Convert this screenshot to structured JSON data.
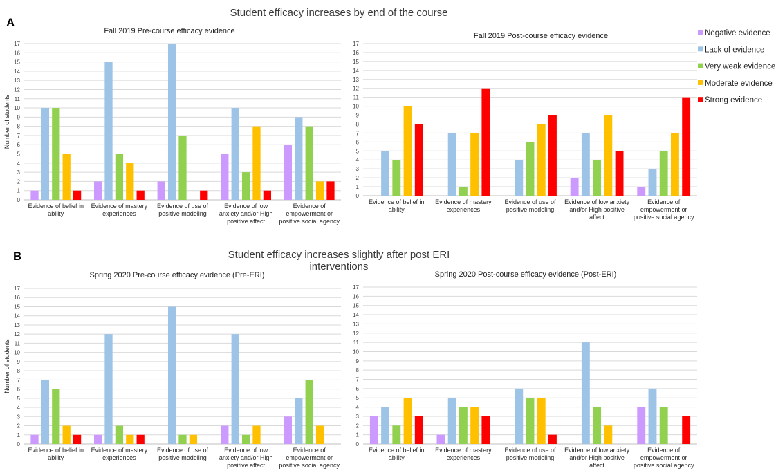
{
  "figure": {
    "section_titles": [
      "Student efficacy increases by end of the course",
      "Student efficacy increases slightly after post ERI interventions"
    ],
    "panel_labels": [
      "A",
      "B"
    ]
  },
  "legend": {
    "placement": "right",
    "items": [
      {
        "name": "Negative evidence",
        "color": "#cc99ff"
      },
      {
        "name": "Lack of evidence",
        "color": "#9dc3e6"
      },
      {
        "name": "Very weak evidence",
        "color": "#92d050"
      },
      {
        "name": "Moderate evidence",
        "color": "#ffc000"
      },
      {
        "name": "Strong evidence",
        "color": "#ff0000"
      }
    ]
  },
  "chart_data": [
    {
      "type": "bar",
      "title": "Fall 2019 Pre-course efficacy evidence",
      "ylabel": "Number of students",
      "ylim": [
        0,
        17
      ],
      "yticks": [
        0,
        1,
        2,
        3,
        4,
        5,
        6,
        7,
        8,
        9,
        10,
        11,
        12,
        13,
        14,
        15,
        16,
        17
      ],
      "grid": true,
      "categories": [
        [
          "Evidence of belief in",
          "ability"
        ],
        [
          "Evidence of mastery",
          "experiences"
        ],
        [
          "Evidence of use of",
          "positive modeling"
        ],
        [
          "Evidence of low",
          "anxiety and/or High",
          "positive affect"
        ],
        [
          "Evidence of",
          "empowerment or",
          "positive social agency"
        ]
      ],
      "series": [
        {
          "name": "Negative evidence",
          "values": [
            1,
            2,
            2,
            5,
            6
          ]
        },
        {
          "name": "Lack of evidence",
          "values": [
            10,
            15,
            17,
            10,
            9
          ]
        },
        {
          "name": "Very weak evidence",
          "values": [
            10,
            5,
            7,
            3,
            8
          ]
        },
        {
          "name": "Moderate evidence",
          "values": [
            5,
            4,
            0,
            8,
            2
          ]
        },
        {
          "name": "Strong evidence",
          "values": [
            1,
            1,
            1,
            1,
            2
          ]
        }
      ]
    },
    {
      "type": "bar",
      "title": "Fall 2019 Post-course efficacy evidence",
      "ylabel": "",
      "ylim": [
        0,
        17
      ],
      "yticks": [
        0,
        1,
        2,
        3,
        4,
        5,
        6,
        7,
        8,
        9,
        10,
        11,
        12,
        13,
        14,
        15,
        16,
        17
      ],
      "grid": true,
      "categories": [
        [
          "Evidence of belief in",
          "ability"
        ],
        [
          "Evidence of mastery",
          "experiences"
        ],
        [
          "Evidence of use of",
          "positive modeling"
        ],
        [
          "Evidence of low anxiety",
          "and/or High positive",
          "affect"
        ],
        [
          "Evidence of",
          "empowerment or",
          "positive social agency"
        ]
      ],
      "series": [
        {
          "name": "Negative evidence",
          "values": [
            0,
            0,
            0,
            2,
            1
          ]
        },
        {
          "name": "Lack of evidence",
          "values": [
            5,
            7,
            4,
            7,
            3
          ]
        },
        {
          "name": "Very weak evidence",
          "values": [
            4,
            1,
            6,
            4,
            5
          ]
        },
        {
          "name": "Moderate evidence",
          "values": [
            10,
            7,
            8,
            9,
            7
          ]
        },
        {
          "name": "Strong evidence",
          "values": [
            8,
            12,
            9,
            5,
            11
          ]
        }
      ]
    },
    {
      "type": "bar",
      "title": "Spring 2020 Pre-course efficacy evidence (Pre-ERI)",
      "ylabel": "Number of students",
      "ylim": [
        0,
        17
      ],
      "yticks": [
        0,
        1,
        2,
        3,
        4,
        5,
        6,
        7,
        8,
        9,
        10,
        11,
        12,
        13,
        14,
        15,
        16,
        17
      ],
      "grid": true,
      "categories": [
        [
          "Evidence of belief in",
          "ability"
        ],
        [
          "Evidence of mastery",
          "experiences"
        ],
        [
          "Evidence of use of",
          "positive modeling"
        ],
        [
          "Evidence of low",
          "anxiety and/or High",
          "positive affect"
        ],
        [
          "Evidence of",
          "empowerment or",
          "positive social agency"
        ]
      ],
      "series": [
        {
          "name": "Negative evidence",
          "values": [
            1,
            1,
            0,
            2,
            3
          ]
        },
        {
          "name": "Lack of evidence",
          "values": [
            7,
            12,
            15,
            12,
            5
          ]
        },
        {
          "name": "Very weak evidence",
          "values": [
            6,
            2,
            1,
            1,
            7
          ]
        },
        {
          "name": "Moderate evidence",
          "values": [
            2,
            1,
            1,
            2,
            2
          ]
        },
        {
          "name": "Strong evidence",
          "values": [
            1,
            1,
            0,
            0,
            0
          ]
        }
      ]
    },
    {
      "type": "bar",
      "title": "Spring 2020 Post-course efficacy evidence (Post-ERI)",
      "ylabel": "",
      "ylim": [
        0,
        17
      ],
      "yticks": [
        0,
        1,
        2,
        3,
        4,
        5,
        6,
        7,
        8,
        9,
        10,
        11,
        12,
        13,
        14,
        15,
        16,
        17
      ],
      "grid": true,
      "categories": [
        [
          "Evidence of belief in",
          "ability"
        ],
        [
          "Evidence of mastery",
          "experiences"
        ],
        [
          "Evidence of use of",
          "positive modeling"
        ],
        [
          "Evidence of low anxiety",
          "and/or High positive",
          "affect"
        ],
        [
          "Evidence of",
          "empowerment or",
          "positive social agency"
        ]
      ],
      "series": [
        {
          "name": "Negative evidence",
          "values": [
            3,
            1,
            0,
            0,
            4
          ]
        },
        {
          "name": "Lack of evidence",
          "values": [
            4,
            5,
            6,
            11,
            6
          ]
        },
        {
          "name": "Very weak evidence",
          "values": [
            2,
            4,
            5,
            4,
            4
          ]
        },
        {
          "name": "Moderate evidence",
          "values": [
            5,
            4,
            5,
            2,
            0
          ]
        },
        {
          "name": "Strong evidence",
          "values": [
            3,
            3,
            1,
            0,
            3
          ]
        }
      ]
    }
  ]
}
